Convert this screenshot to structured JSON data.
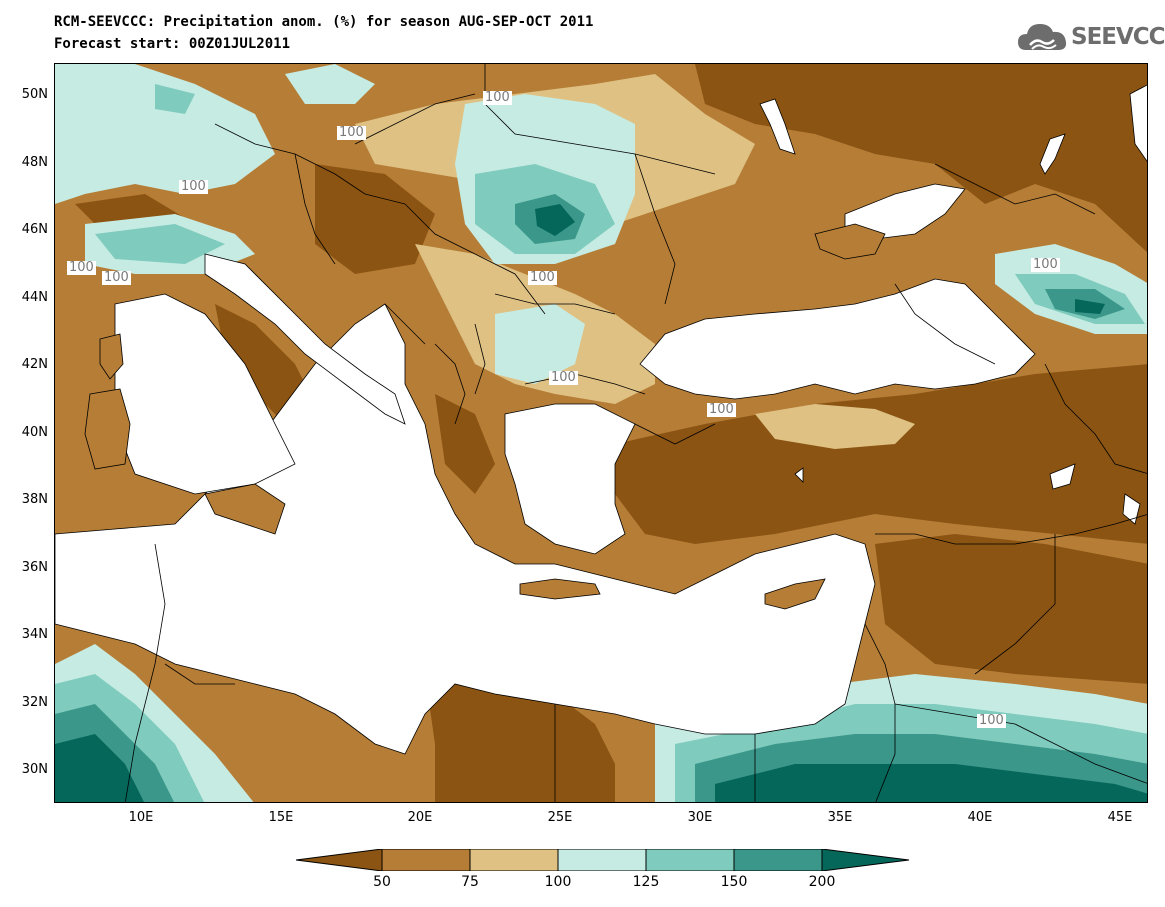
{
  "title": {
    "line1": "RCM-SEEVCCC: Precipitation anom. (%) for season AUG-SEP-OCT 2011",
    "line2": "Forecast start: 00Z01JUL2011"
  },
  "logo": {
    "text": "SEEVCCC",
    "icon": "cloud-logo-icon"
  },
  "map": {
    "projection": "lat-lon",
    "lon_range": [
      7,
      46
    ],
    "lat_range": [
      29,
      51
    ],
    "lat_ticks": [
      "50N",
      "48N",
      "46N",
      "44N",
      "42N",
      "40N",
      "38N",
      "36N",
      "34N",
      "32N",
      "30N"
    ],
    "lon_ticks": [
      "10E",
      "15E",
      "20E",
      "25E",
      "30E",
      "35E",
      "40E",
      "45E"
    ],
    "contour_labels": [
      "100",
      "100",
      "100",
      "100",
      "100",
      "100",
      "100",
      "100",
      "100",
      "100"
    ],
    "colors": {
      "lt50": "#8b5412",
      "c50_75": "#b57d36",
      "c75_100": "#dfc183",
      "c100_125": "#c6ebe3",
      "c125_150": "#7fcbbd",
      "c150_200": "#3a978a",
      "gt200": "#05665a",
      "sea": "#ffffff"
    }
  },
  "legend": {
    "ticks": [
      "50",
      "75",
      "100",
      "125",
      "150",
      "200"
    ],
    "colors": [
      "#8b5412",
      "#b57d36",
      "#dfc183",
      "#c6ebe3",
      "#7fcbbd",
      "#3a978a",
      "#05665a"
    ]
  }
}
